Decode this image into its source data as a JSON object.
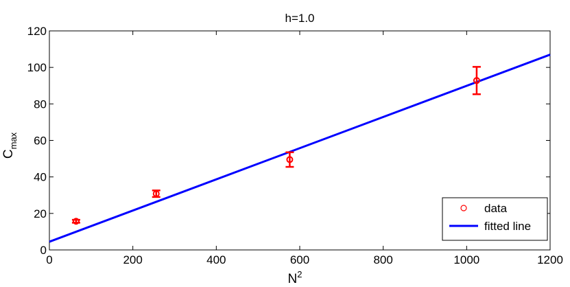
{
  "chart_data": {
    "type": "scatter",
    "title": "h=1.0",
    "xlabel": {
      "base": "N",
      "sup": "2"
    },
    "ylabel": {
      "base": "C",
      "sub": "max"
    },
    "xlim": [
      0,
      1200
    ],
    "ylim": [
      0,
      120
    ],
    "xticks": [
      0,
      200,
      400,
      600,
      800,
      1000,
      1200
    ],
    "yticks": [
      0,
      20,
      40,
      60,
      80,
      100,
      120
    ],
    "grid": false,
    "legend_position": "bottom-right",
    "series": [
      {
        "name": "data",
        "kind": "points-with-errorbars",
        "color": "#ff0000",
        "points": [
          {
            "x": 64,
            "y": 15.7,
            "err": 0.8
          },
          {
            "x": 256,
            "y": 30.8,
            "err": 1.8
          },
          {
            "x": 576,
            "y": 49.5,
            "err": 4.0
          },
          {
            "x": 1024,
            "y": 92.8,
            "err": 7.5
          }
        ]
      },
      {
        "name": "fitted line",
        "kind": "line",
        "color": "#0000ff",
        "x": [
          0,
          1200
        ],
        "y": [
          4.5,
          107
        ]
      }
    ]
  }
}
